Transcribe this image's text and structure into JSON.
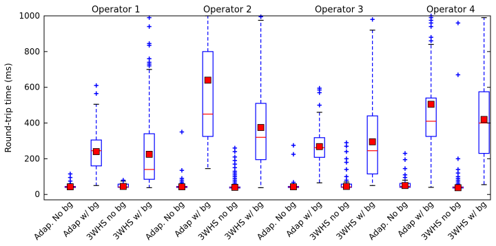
{
  "chart_data": {
    "type": "boxplot",
    "ylabel": "Round-trip time (ms)",
    "ylim": [
      0,
      1000
    ],
    "yticks": [
      0,
      200,
      400,
      600,
      800,
      1000
    ],
    "grid": false,
    "categories": [
      "Adap. No bg",
      "Adap w/ bg",
      "3WHS no bg",
      "3WHS w/ bg"
    ],
    "colors": {
      "box": "#0000ff",
      "median": "#ff0000",
      "mean_marker": "#ff0000",
      "flier": "#0000ff"
    },
    "panels": [
      {
        "title": "Operator 1",
        "boxes": [
          {
            "category": "Adap. No bg",
            "whisker_low": 38,
            "q1": 40,
            "median": 42,
            "q3": 45,
            "whisker_high": 50,
            "mean": 43,
            "outliers": [
              60,
              75,
              95,
              115
            ]
          },
          {
            "category": "Adap w/ bg",
            "whisker_low": 50,
            "q1": 160,
            "median": 245,
            "q3": 305,
            "whisker_high": 505,
            "mean": 240,
            "outliers": [
              565,
              610
            ]
          },
          {
            "category": "3WHS no bg",
            "whisker_low": 38,
            "q1": 40,
            "median": 42,
            "q3": 58,
            "whisker_high": 75,
            "mean": 45,
            "outliers": [
              80
            ]
          },
          {
            "category": "3WHS w/ bg",
            "whisker_low": 38,
            "q1": 85,
            "median": 140,
            "q3": 340,
            "whisker_high": 700,
            "mean": 225,
            "outliers": [
              720,
              730,
              740,
              760,
              835,
              845,
              940,
              990
            ]
          }
        ]
      },
      {
        "title": "Operator 2",
        "boxes": [
          {
            "category": "Adap. No bg",
            "whisker_low": 38,
            "q1": 40,
            "median": 42,
            "q3": 45,
            "whisker_high": 52,
            "mean": 43,
            "outliers": [
              58,
              62,
              70,
              80,
              90,
              135,
              350
            ]
          },
          {
            "category": "Adap w/ bg",
            "whisker_low": 145,
            "q1": 325,
            "median": 450,
            "q3": 800,
            "whisker_high": 1000,
            "mean": 640,
            "outliers": []
          },
          {
            "category": "3WHS no bg",
            "whisker_low": 35,
            "q1": 37,
            "median": 40,
            "q3": 42,
            "whisker_high": 45,
            "mean": 40,
            "outliers": [
              50,
              60,
              70,
              80,
              90,
              100,
              110,
              120,
              130,
              150,
              170,
              190,
              210,
              240,
              260
            ]
          },
          {
            "category": "3WHS w/ bg",
            "whisker_low": 38,
            "q1": 195,
            "median": 320,
            "q3": 510,
            "whisker_high": 975,
            "mean": 375,
            "outliers": [
              995
            ]
          }
        ]
      },
      {
        "title": "Operator 3",
        "boxes": [
          {
            "category": "Adap. No bg",
            "whisker_low": 38,
            "q1": 40,
            "median": 42,
            "q3": 45,
            "whisker_high": 52,
            "mean": 43,
            "outliers": [
              58,
              68,
              225,
              275
            ]
          },
          {
            "category": "Adap w/ bg",
            "whisker_low": 65,
            "q1": 208,
            "median": 262,
            "q3": 318,
            "whisker_high": 460,
            "mean": 268,
            "outliers": [
              500,
              570,
              585,
              595
            ]
          },
          {
            "category": "3WHS no bg",
            "whisker_low": 38,
            "q1": 40,
            "median": 42,
            "q3": 58,
            "whisker_high": 70,
            "mean": 45,
            "outliers": [
              80,
              100,
              140,
              180,
              200,
              240,
              270,
              290
            ]
          },
          {
            "category": "3WHS w/ bg",
            "whisker_low": 50,
            "q1": 115,
            "median": 245,
            "q3": 440,
            "whisker_high": 920,
            "mean": 295,
            "outliers": [
              980
            ]
          }
        ]
      },
      {
        "title": "Operator 4",
        "boxes": [
          {
            "category": "Adap. No bg",
            "whisker_low": 38,
            "q1": 40,
            "median": 45,
            "q3": 62,
            "whisker_high": 80,
            "mean": 50,
            "outliers": [
              95,
              110,
              145,
              195,
              230
            ]
          },
          {
            "category": "Adap w/ bg",
            "whisker_low": 40,
            "q1": 325,
            "median": 410,
            "q3": 540,
            "whisker_high": 840,
            "mean": 505,
            "outliers": [
              860,
              880,
              940,
              960,
              975,
              990,
              1000
            ]
          },
          {
            "category": "3WHS no bg",
            "whisker_low": 35,
            "q1": 37,
            "median": 40,
            "q3": 42,
            "whisker_high": 45,
            "mean": 38,
            "outliers": [
              50,
              60,
              70,
              80,
              90,
              100,
              120,
              140,
              200,
              670,
              960
            ]
          },
          {
            "category": "3WHS w/ bg",
            "whisker_low": 55,
            "q1": 230,
            "median": 400,
            "q3": 575,
            "whisker_high": 990,
            "mean": 420,
            "outliers": []
          }
        ]
      }
    ]
  }
}
